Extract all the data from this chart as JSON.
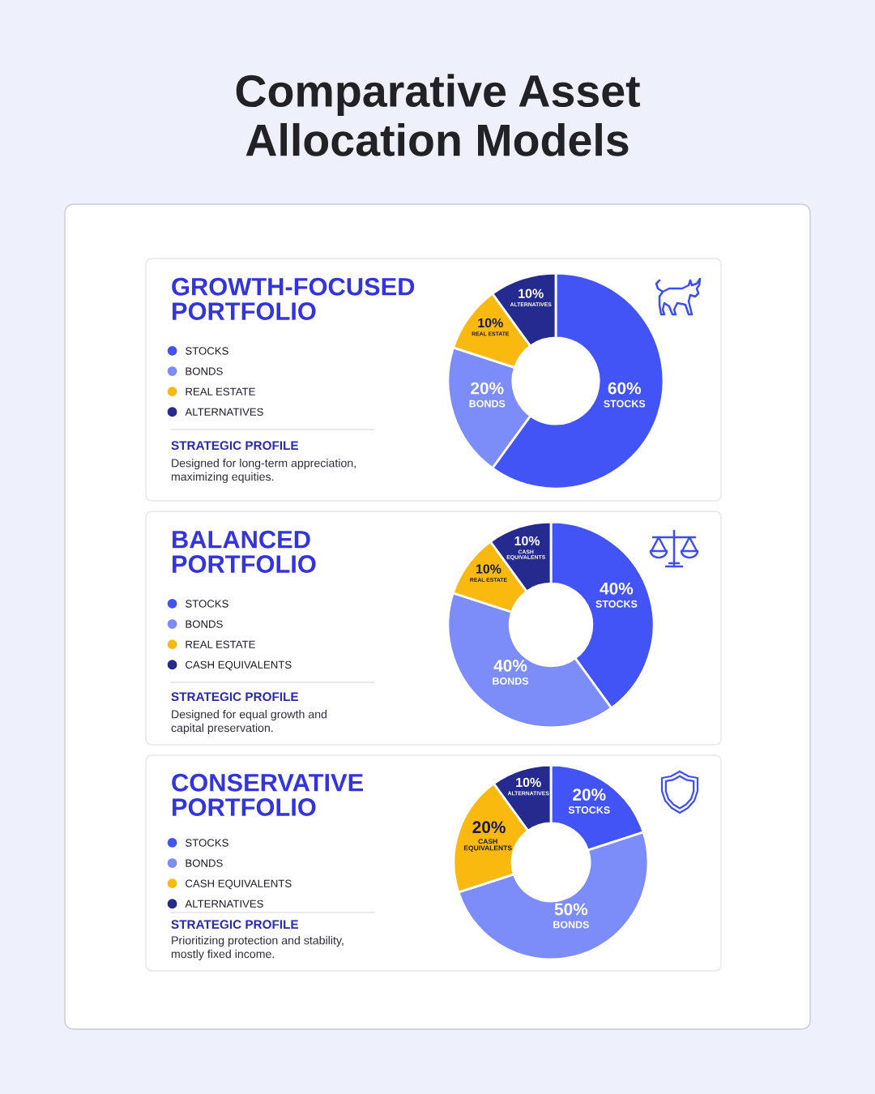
{
  "chart_data": [
    {
      "type": "other",
      "title": "Comparative Asset\nAllocation Models"
    },
    {
      "type": "donut",
      "title": "GROWTH-FOCUSED\nPORTFOLIO",
      "categories": [
        "STOCKS",
        "BONDS",
        "REAL ESTATE",
        "ALTERNATIVES"
      ],
      "values": [
        60,
        20,
        10,
        10
      ],
      "colors": [
        "#4254f5",
        "#7c8cf8",
        "#f9b90f",
        "#252a8e"
      ],
      "value_labels": [
        "60%",
        "20%",
        "10%",
        "10%"
      ],
      "legend": "left",
      "annotations": [
        "STRATEGIC PROFILE",
        "Designed for long-term appreciation,\nmaximizing equities."
      ]
    },
    {
      "type": "donut",
      "title": "BALANCED\nPORTFOLIO",
      "categories": [
        "STOCKS",
        "BONDS",
        "REAL ESTATE",
        "CASH EQUIVALENTS"
      ],
      "values": [
        40,
        40,
        10,
        10
      ],
      "colors": [
        "#4254f5",
        "#7c8cf8",
        "#f9b90f",
        "#252a8e"
      ],
      "value_labels": [
        "40%",
        "40%",
        "10%",
        "10%"
      ],
      "legend": "left",
      "annotations": [
        "STRATEGIC PROFILE",
        "Designed for equal growth and\ncapital preservation."
      ]
    },
    {
      "type": "donut",
      "title": "CONSERVATIVE\nPORTFOLIO",
      "categories": [
        "STOCKS",
        "BONDS",
        "CASH EQUIVALENTS",
        "ALTERNATIVES"
      ],
      "values": [
        20,
        50,
        20,
        10
      ],
      "colors": [
        "#4254f5",
        "#7c8cf8",
        "#f9b90f",
        "#252a8e"
      ],
      "value_labels": [
        "20%",
        "50%",
        "20%",
        "10%"
      ],
      "legend": "left",
      "annotations": [
        "STRATEGIC PROFILE",
        "Prioritizing protection and stability,\nmostly fixed income."
      ]
    }
  ]
}
